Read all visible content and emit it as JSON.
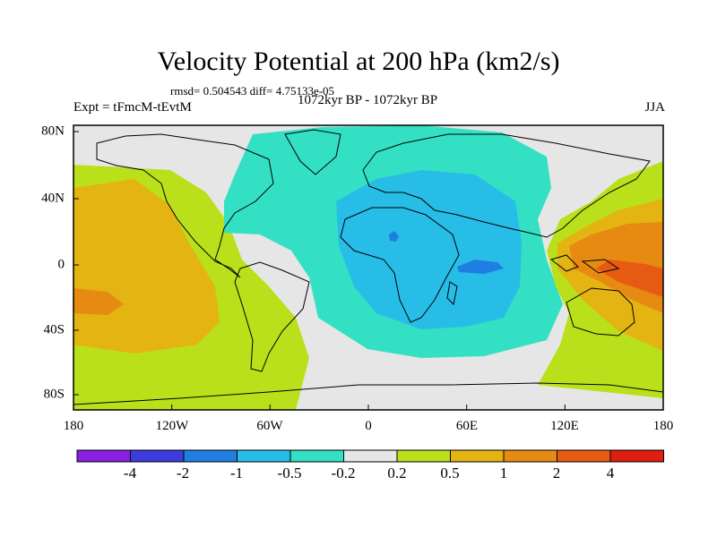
{
  "title": "Velocity Potential at 200 hPa (km2/s)",
  "stats": "rmsd= 0.504543 diff= 4.75133e-05",
  "experiment": "Expt = tFmcM-tEvtM",
  "period": "1072kyr BP - 1072kyr BP",
  "season": "JJA",
  "lon_labels": [
    "180",
    "120W",
    "60W",
    "0",
    "60E",
    "120E",
    "180"
  ],
  "lat_labels": [
    "80N",
    "40N",
    "0",
    "40S",
    "80S"
  ],
  "colorbar": {
    "colors": [
      "#8a1fe0",
      "#3b3bde",
      "#1e7fe0",
      "#28bde6",
      "#33e0c4",
      "#e6e6e6",
      "#b9e01a",
      "#e3b412",
      "#e68a12",
      "#e65a12",
      "#e01e12"
    ],
    "labels": [
      "-4",
      "-2",
      "-1",
      "-0.5",
      "-0.2",
      "0.2",
      "0.5",
      "1",
      "2",
      "4"
    ]
  },
  "field_colors": {
    "background": "#e6e6e6",
    "neg_weak": "#33e0c4",
    "neg_mid": "#28bde6",
    "neg_strong": "#1e7fe0",
    "pos_weak": "#b9e01a",
    "pos_mid": "#e3b412",
    "pos_strong": "#e68a12",
    "pos_max": "#e65a12"
  }
}
